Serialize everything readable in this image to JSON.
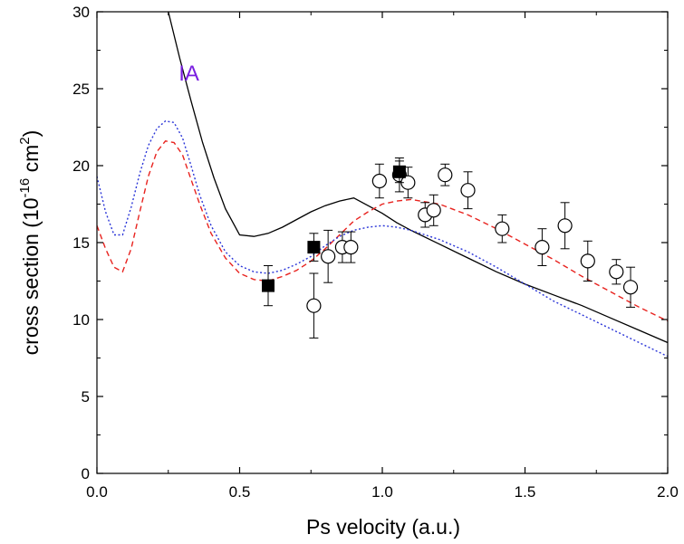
{
  "chart_data": {
    "type": "scatter",
    "title": "",
    "xlabel": "Ps velocity (a.u.)",
    "ylabel": {
      "prefix": "cross section (10",
      "exp1": "-16",
      "mid": " cm",
      "exp2": "2",
      "suffix": ")"
    },
    "xlim": [
      0.0,
      2.0
    ],
    "ylim": [
      0,
      30
    ],
    "xticks": [
      0.0,
      0.5,
      1.0,
      1.5,
      2.0
    ],
    "xtick_labels": [
      "0.0",
      "0.5",
      "1.0",
      "1.5",
      "2.0"
    ],
    "yticks": [
      0,
      5,
      10,
      15,
      20,
      25,
      30
    ],
    "ytick_labels": [
      "0",
      "5",
      "10",
      "15",
      "20",
      "25",
      "30"
    ],
    "grid": false,
    "legend": "none",
    "annotations": [
      {
        "text": "IA",
        "x": 0.35,
        "y": 26.0,
        "color": "#7a1fe0"
      }
    ],
    "series": [
      {
        "name": "IA",
        "kind": "line",
        "style": "solid",
        "color": "#000000",
        "x": [
          0.25,
          0.29,
          0.33,
          0.37,
          0.41,
          0.45,
          0.5,
          0.55,
          0.6,
          0.65,
          0.7,
          0.75,
          0.8,
          0.85,
          0.9,
          0.95,
          1.0,
          1.05,
          1.1,
          1.2,
          1.3,
          1.4,
          1.5,
          1.6,
          1.7,
          1.8,
          1.9,
          2.0
        ],
        "y": [
          30.0,
          27.0,
          24.2,
          21.5,
          19.2,
          17.2,
          15.5,
          15.4,
          15.6,
          16.0,
          16.5,
          17.0,
          17.4,
          17.7,
          17.9,
          17.4,
          16.9,
          16.3,
          15.8,
          14.9,
          14.0,
          13.1,
          12.3,
          11.6,
          10.9,
          10.1,
          9.3,
          8.5
        ]
      },
      {
        "kind": "line",
        "style": "dashed",
        "color": "#e8231f",
        "x": [
          0.0,
          0.03,
          0.06,
          0.09,
          0.12,
          0.15,
          0.18,
          0.21,
          0.24,
          0.27,
          0.3,
          0.33,
          0.36,
          0.4,
          0.45,
          0.5,
          0.55,
          0.6,
          0.65,
          0.7,
          0.75,
          0.8,
          0.85,
          0.9,
          0.95,
          1.0,
          1.05,
          1.1,
          1.2,
          1.3,
          1.4,
          1.5,
          1.6,
          1.7,
          1.8,
          1.9,
          2.0
        ],
        "y": [
          16.1,
          14.6,
          13.4,
          13.1,
          14.6,
          17.0,
          19.3,
          20.9,
          21.6,
          21.5,
          20.7,
          19.1,
          17.5,
          15.6,
          14.0,
          13.0,
          12.6,
          12.5,
          12.8,
          13.2,
          13.8,
          14.6,
          15.5,
          16.4,
          17.0,
          17.5,
          17.7,
          17.8,
          17.5,
          16.8,
          15.9,
          14.9,
          13.9,
          12.8,
          11.8,
          10.8,
          9.9
        ]
      },
      {
        "kind": "line",
        "style": "dotted",
        "color": "#2a35d8",
        "x": [
          0.0,
          0.03,
          0.06,
          0.09,
          0.12,
          0.15,
          0.18,
          0.21,
          0.24,
          0.27,
          0.3,
          0.33,
          0.36,
          0.4,
          0.45,
          0.5,
          0.55,
          0.6,
          0.65,
          0.7,
          0.75,
          0.8,
          0.85,
          0.9,
          0.95,
          1.0,
          1.05,
          1.1,
          1.2,
          1.3,
          1.4,
          1.5,
          1.6,
          1.7,
          1.8,
          1.9,
          2.0
        ],
        "y": [
          19.3,
          17.0,
          15.5,
          15.5,
          17.3,
          19.5,
          21.3,
          22.4,
          22.9,
          22.8,
          21.8,
          20.0,
          18.1,
          16.1,
          14.4,
          13.5,
          13.1,
          13.0,
          13.2,
          13.6,
          14.1,
          14.8,
          15.4,
          15.8,
          16.0,
          16.1,
          16.0,
          15.8,
          15.2,
          14.4,
          13.4,
          12.3,
          11.2,
          10.3,
          9.4,
          8.5,
          7.6
        ]
      },
      {
        "kind": "markers",
        "marker": "open-circle",
        "color": "#000000",
        "points": [
          {
            "x": 0.76,
            "y": 10.9,
            "err": 2.1
          },
          {
            "x": 0.81,
            "y": 14.1,
            "err": 1.7
          },
          {
            "x": 0.86,
            "y": 14.7,
            "err": 1.0
          },
          {
            "x": 0.89,
            "y": 14.7,
            "err": 1.0
          },
          {
            "x": 0.99,
            "y": 19.0,
            "err": 1.1
          },
          {
            "x": 1.06,
            "y": 19.4,
            "err": 1.1
          },
          {
            "x": 1.09,
            "y": 18.9,
            "err": 1.0
          },
          {
            "x": 1.15,
            "y": 16.8,
            "err": 0.8
          },
          {
            "x": 1.18,
            "y": 17.1,
            "err": 1.0
          },
          {
            "x": 1.22,
            "y": 19.4,
            "err": 0.7
          },
          {
            "x": 1.3,
            "y": 18.4,
            "err": 1.2
          },
          {
            "x": 1.42,
            "y": 15.9,
            "err": 0.9
          },
          {
            "x": 1.56,
            "y": 14.7,
            "err": 1.2
          },
          {
            "x": 1.64,
            "y": 16.1,
            "err": 1.5
          },
          {
            "x": 1.72,
            "y": 13.8,
            "err": 1.3
          },
          {
            "x": 1.82,
            "y": 13.1,
            "err": 0.8
          },
          {
            "x": 1.87,
            "y": 12.1,
            "err": 1.3
          }
        ]
      },
      {
        "kind": "markers",
        "marker": "filled-square",
        "color": "#000000",
        "points": [
          {
            "x": 0.6,
            "y": 12.2,
            "err": 1.3
          },
          {
            "x": 0.76,
            "y": 14.7,
            "err": 0.9
          },
          {
            "x": 1.06,
            "y": 19.6,
            "err": 0.7
          }
        ]
      }
    ]
  }
}
